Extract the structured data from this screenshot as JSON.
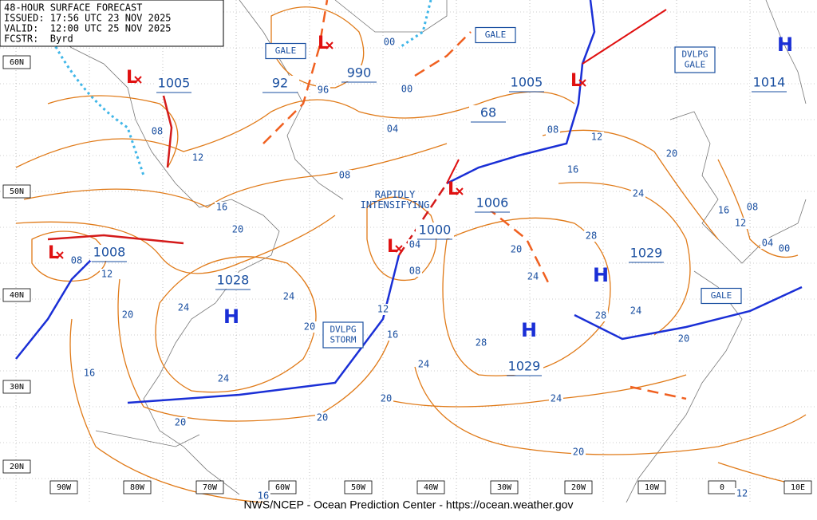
{
  "header": {
    "lines": [
      "48-HOUR SURFACE FORECAST",
      "ISSUED: 17:56 UTC 23 NOV 2025",
      "VALID:  12:00 UTC 25 NOV 2025",
      "FCSTR:  Byrd"
    ]
  },
  "latitudes": [
    "60N",
    "50N",
    "40N",
    "30N",
    "20N"
  ],
  "longitudes": [
    "90W",
    "80W",
    "70W",
    "60W",
    "50W",
    "40W",
    "30W",
    "20W",
    "10W",
    "0",
    "10E"
  ],
  "pressure_centers": [
    "1005",
    "92",
    "990",
    "1005",
    "68",
    "1014",
    "1006",
    "1000",
    "1008",
    "1028",
    "1029",
    "1029"
  ],
  "highs": [
    "H",
    "H",
    "H",
    "H"
  ],
  "lows": [
    "L",
    "L",
    "L",
    "L",
    "L",
    "L"
  ],
  "warnings": [
    "GALE",
    "GALE",
    "DVLPG\nGALE",
    "DVLPG\nSTORM",
    "GALE"
  ],
  "annotation": "RAPIDLY\nINTENSIFYING",
  "isobar_labels": [
    "08",
    "12",
    "96",
    "00",
    "00",
    "04",
    "08",
    "16",
    "20",
    "08",
    "12",
    "24",
    "20",
    "24",
    "20",
    "12",
    "16",
    "08",
    "04",
    "20",
    "24",
    "28",
    "24",
    "16",
    "12",
    "08",
    "20",
    "16",
    "08",
    "12",
    "04",
    "00",
    "28",
    "24",
    "20",
    "28",
    "24",
    "20",
    "24",
    "24",
    "20",
    "20",
    "16",
    "20",
    "16",
    "12"
  ],
  "footer": "NWS/NCEP - Ocean Prediction Center - https://ocean.weather.gov"
}
